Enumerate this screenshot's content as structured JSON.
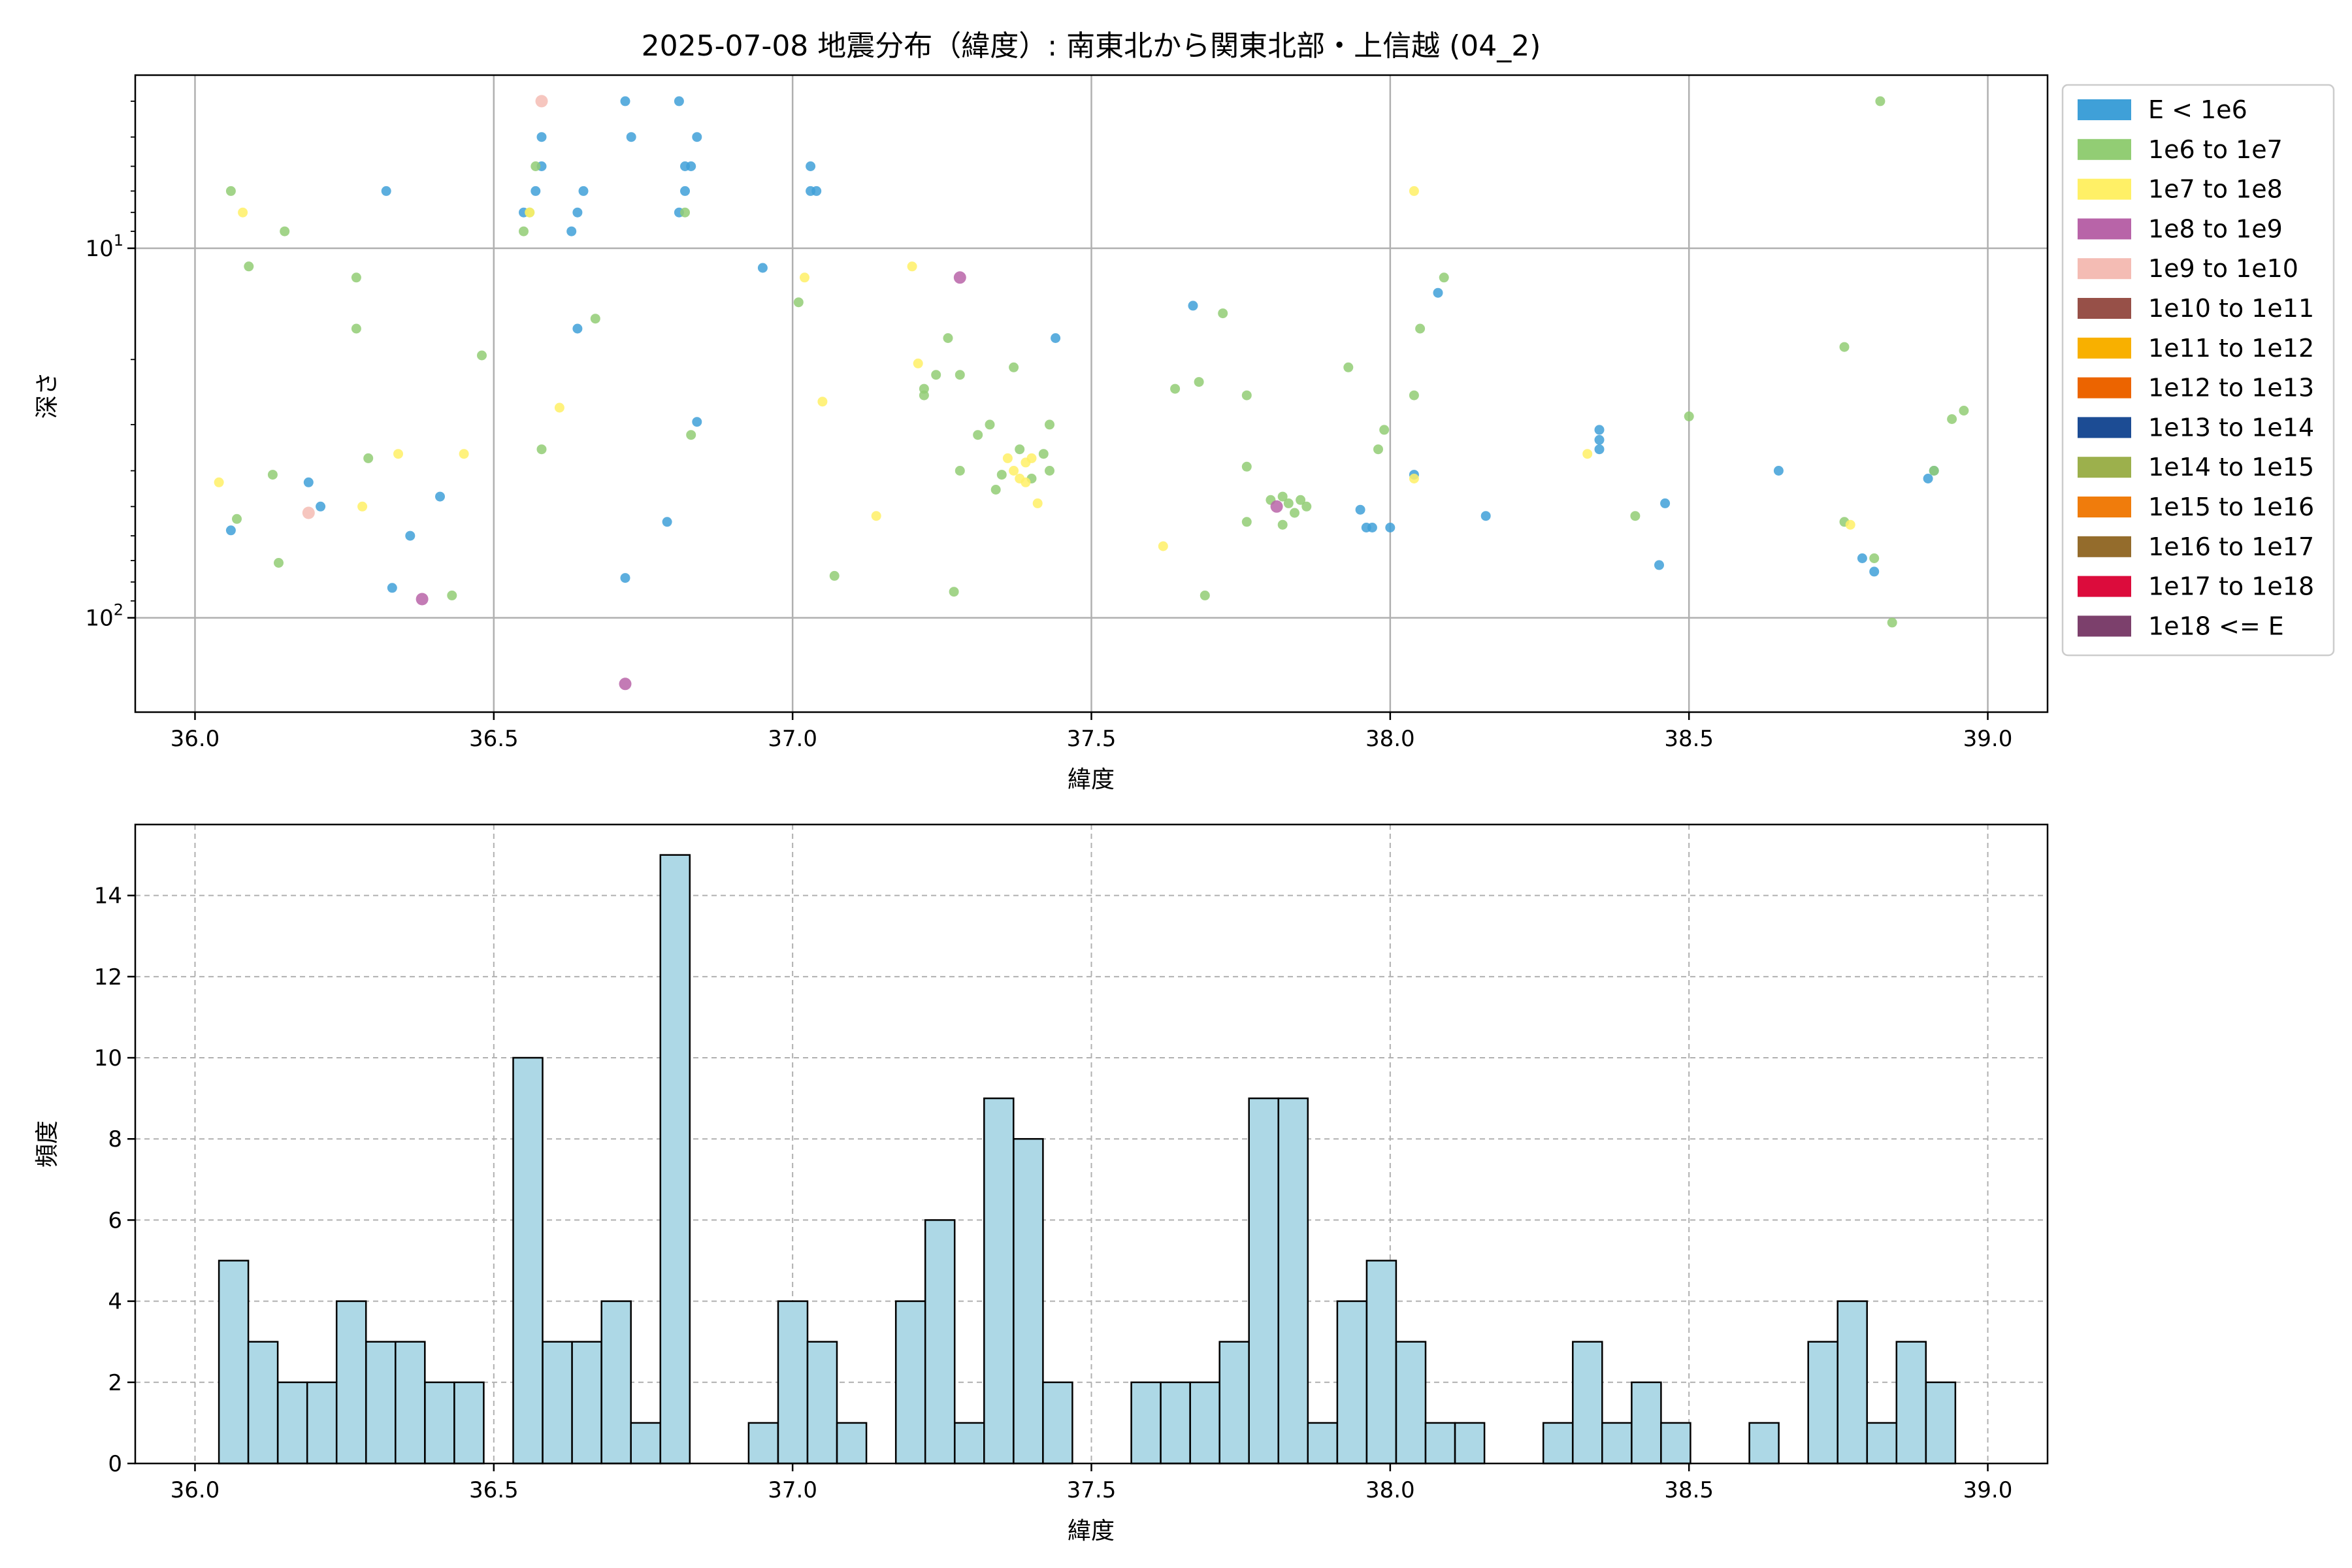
{
  "chart_data": [
    {
      "type": "scatter",
      "title": "2025-07-08 地震分布（緯度）: 南東北から関東北部・上信越 (04_2)",
      "xlabel": "緯度",
      "ylabel": "深さ",
      "xlim": [
        35.9,
        39.1
      ],
      "ylim": [
        180,
        3.4
      ],
      "yscale": "log",
      "y_inverted": true,
      "grid": true,
      "x_ticks": [
        "36.0",
        "36.5",
        "37.0",
        "37.5",
        "38.0",
        "38.5",
        "39.0"
      ],
      "y_ticks": [
        {
          "value": 10,
          "base": "10",
          "exp": "1"
        },
        {
          "value": 100,
          "base": "10",
          "exp": "2"
        }
      ],
      "legend_position": "outside-right",
      "legend": [
        {
          "label": "E < 1e6",
          "color": "#3fa0d8"
        },
        {
          "label": "1e6 to 1e7",
          "color": "#92cd74"
        },
        {
          "label": "1e7 to 1e8",
          "color": "#fff066"
        },
        {
          "label": "1e8 to 1e9",
          "color": "#b864a8"
        },
        {
          "label": "1e9 to 1e10",
          "color": "#f4bcb4"
        },
        {
          "label": "1e10 to 1e11",
          "color": "#975048"
        },
        {
          "label": "1e11 to 1e12",
          "color": "#f8b000"
        },
        {
          "label": "1e12 to 1e13",
          "color": "#ec6400"
        },
        {
          "label": "1e13 to 1e14",
          "color": "#1c4c94"
        },
        {
          "label": "1e14 to 1e15",
          "color": "#9cb04c"
        },
        {
          "label": "1e15 to 1e16",
          "color": "#f07c0c"
        },
        {
          "label": "1e16 to 1e17",
          "color": "#946c2c"
        },
        {
          "label": "1e17 to 1e18",
          "color": "#dc0c3c"
        },
        {
          "label": "1e18 <= E",
          "color": "#7c406c"
        }
      ],
      "points": [
        {
          "x": 36.06,
          "y": 58,
          "c": 0
        },
        {
          "x": 36.19,
          "y": 43,
          "c": 0
        },
        {
          "x": 36.21,
          "y": 50,
          "c": 0
        },
        {
          "x": 36.32,
          "y": 7,
          "c": 0
        },
        {
          "x": 36.33,
          "y": 83,
          "c": 0
        },
        {
          "x": 36.36,
          "y": 60,
          "c": 0
        },
        {
          "x": 36.41,
          "y": 47,
          "c": 0
        },
        {
          "x": 36.55,
          "y": 8,
          "c": 0
        },
        {
          "x": 36.57,
          "y": 7,
          "c": 0
        },
        {
          "x": 36.58,
          "y": 6,
          "c": 0
        },
        {
          "x": 36.58,
          "y": 5,
          "c": 0
        },
        {
          "x": 36.63,
          "y": 9,
          "c": 0
        },
        {
          "x": 36.64,
          "y": 8,
          "c": 0
        },
        {
          "x": 36.64,
          "y": 16.5,
          "c": 0
        },
        {
          "x": 36.65,
          "y": 7,
          "c": 0
        },
        {
          "x": 36.72,
          "y": 4,
          "c": 0
        },
        {
          "x": 36.73,
          "y": 5,
          "c": 0
        },
        {
          "x": 36.72,
          "y": 78,
          "c": 0
        },
        {
          "x": 36.79,
          "y": 55,
          "c": 0
        },
        {
          "x": 36.81,
          "y": 4,
          "c": 0
        },
        {
          "x": 36.81,
          "y": 8,
          "c": 0
        },
        {
          "x": 36.82,
          "y": 6,
          "c": 0
        },
        {
          "x": 36.83,
          "y": 6,
          "c": 0
        },
        {
          "x": 36.82,
          "y": 7,
          "c": 0
        },
        {
          "x": 36.84,
          "y": 5,
          "c": 0
        },
        {
          "x": 36.84,
          "y": 29.5,
          "c": 0
        },
        {
          "x": 36.95,
          "y": 11.3,
          "c": 0
        },
        {
          "x": 37.03,
          "y": 6,
          "c": 0
        },
        {
          "x": 37.03,
          "y": 7,
          "c": 0
        },
        {
          "x": 37.04,
          "y": 7,
          "c": 0
        },
        {
          "x": 37.44,
          "y": 17.5,
          "c": 0
        },
        {
          "x": 37.67,
          "y": 14.3,
          "c": 0
        },
        {
          "x": 37.95,
          "y": 51,
          "c": 0
        },
        {
          "x": 37.96,
          "y": 57,
          "c": 0
        },
        {
          "x": 37.97,
          "y": 57,
          "c": 0
        },
        {
          "x": 38.0,
          "y": 57,
          "c": 0
        },
        {
          "x": 38.04,
          "y": 41,
          "c": 0
        },
        {
          "x": 38.08,
          "y": 13.2,
          "c": 0
        },
        {
          "x": 38.16,
          "y": 53,
          "c": 0
        },
        {
          "x": 38.35,
          "y": 31,
          "c": 0
        },
        {
          "x": 38.35,
          "y": 33,
          "c": 0
        },
        {
          "x": 38.35,
          "y": 35,
          "c": 0
        },
        {
          "x": 38.45,
          "y": 72,
          "c": 0
        },
        {
          "x": 38.46,
          "y": 49,
          "c": 0
        },
        {
          "x": 38.65,
          "y": 40,
          "c": 0
        },
        {
          "x": 38.79,
          "y": 69,
          "c": 0
        },
        {
          "x": 38.81,
          "y": 75,
          "c": 0
        },
        {
          "x": 38.9,
          "y": 42,
          "c": 0
        },
        {
          "x": 38.91,
          "y": 40,
          "c": 0
        },
        {
          "x": 36.06,
          "y": 7,
          "c": 1
        },
        {
          "x": 36.07,
          "y": 54,
          "c": 1
        },
        {
          "x": 36.09,
          "y": 11.2,
          "c": 1
        },
        {
          "x": 36.13,
          "y": 41,
          "c": 1
        },
        {
          "x": 36.14,
          "y": 71,
          "c": 1
        },
        {
          "x": 36.15,
          "y": 9,
          "c": 1
        },
        {
          "x": 36.27,
          "y": 12,
          "c": 1
        },
        {
          "x": 36.27,
          "y": 16.5,
          "c": 1
        },
        {
          "x": 36.29,
          "y": 37,
          "c": 1
        },
        {
          "x": 36.43,
          "y": 87,
          "c": 1
        },
        {
          "x": 36.48,
          "y": 19.5,
          "c": 1
        },
        {
          "x": 36.55,
          "y": 9,
          "c": 1
        },
        {
          "x": 36.56,
          "y": 8,
          "c": 1
        },
        {
          "x": 36.57,
          "y": 6,
          "c": 1
        },
        {
          "x": 36.58,
          "y": 35,
          "c": 1
        },
        {
          "x": 36.67,
          "y": 15.5,
          "c": 1
        },
        {
          "x": 36.82,
          "y": 8,
          "c": 1
        },
        {
          "x": 36.83,
          "y": 32,
          "c": 1
        },
        {
          "x": 37.01,
          "y": 14,
          "c": 1
        },
        {
          "x": 37.07,
          "y": 77,
          "c": 1
        },
        {
          "x": 37.22,
          "y": 24,
          "c": 1
        },
        {
          "x": 37.22,
          "y": 25,
          "c": 1
        },
        {
          "x": 37.24,
          "y": 22,
          "c": 1
        },
        {
          "x": 37.26,
          "y": 17.5,
          "c": 1
        },
        {
          "x": 37.27,
          "y": 85,
          "c": 1
        },
        {
          "x": 37.28,
          "y": 22,
          "c": 1
        },
        {
          "x": 37.28,
          "y": 40,
          "c": 1
        },
        {
          "x": 37.31,
          "y": 32,
          "c": 1
        },
        {
          "x": 37.33,
          "y": 30,
          "c": 1
        },
        {
          "x": 37.34,
          "y": 45,
          "c": 1
        },
        {
          "x": 37.35,
          "y": 41,
          "c": 1
        },
        {
          "x": 37.37,
          "y": 21,
          "c": 1
        },
        {
          "x": 37.38,
          "y": 35,
          "c": 1
        },
        {
          "x": 37.4,
          "y": 42,
          "c": 1
        },
        {
          "x": 37.42,
          "y": 36,
          "c": 1
        },
        {
          "x": 37.43,
          "y": 30,
          "c": 1
        },
        {
          "x": 37.43,
          "y": 40,
          "c": 1
        },
        {
          "x": 37.64,
          "y": 24,
          "c": 1
        },
        {
          "x": 37.68,
          "y": 23,
          "c": 1
        },
        {
          "x": 37.69,
          "y": 87,
          "c": 1
        },
        {
          "x": 37.72,
          "y": 15,
          "c": 1
        },
        {
          "x": 37.76,
          "y": 39,
          "c": 1
        },
        {
          "x": 37.76,
          "y": 55,
          "c": 1
        },
        {
          "x": 37.76,
          "y": 25,
          "c": 1
        },
        {
          "x": 37.8,
          "y": 48,
          "c": 1
        },
        {
          "x": 37.82,
          "y": 47,
          "c": 1
        },
        {
          "x": 37.82,
          "y": 56,
          "c": 1
        },
        {
          "x": 37.83,
          "y": 49,
          "c": 1
        },
        {
          "x": 37.84,
          "y": 52,
          "c": 1
        },
        {
          "x": 37.85,
          "y": 48,
          "c": 1
        },
        {
          "x": 37.86,
          "y": 50,
          "c": 1
        },
        {
          "x": 37.93,
          "y": 21,
          "c": 1
        },
        {
          "x": 37.98,
          "y": 35,
          "c": 1
        },
        {
          "x": 37.99,
          "y": 31,
          "c": 1
        },
        {
          "x": 38.04,
          "y": 25,
          "c": 1
        },
        {
          "x": 38.05,
          "y": 16.5,
          "c": 1
        },
        {
          "x": 38.09,
          "y": 12,
          "c": 1
        },
        {
          "x": 38.41,
          "y": 53,
          "c": 1
        },
        {
          "x": 38.5,
          "y": 28.5,
          "c": 1
        },
        {
          "x": 38.76,
          "y": 18.5,
          "c": 1
        },
        {
          "x": 38.76,
          "y": 55,
          "c": 1
        },
        {
          "x": 38.81,
          "y": 69,
          "c": 1
        },
        {
          "x": 38.82,
          "y": 4,
          "c": 1
        },
        {
          "x": 38.84,
          "y": 103,
          "c": 1
        },
        {
          "x": 38.91,
          "y": 40,
          "c": 1
        },
        {
          "x": 38.94,
          "y": 29,
          "c": 1
        },
        {
          "x": 38.96,
          "y": 27.5,
          "c": 1
        },
        {
          "x": 36.04,
          "y": 43,
          "c": 2
        },
        {
          "x": 36.08,
          "y": 8,
          "c": 2
        },
        {
          "x": 36.28,
          "y": 50,
          "c": 2
        },
        {
          "x": 36.34,
          "y": 36,
          "c": 2
        },
        {
          "x": 36.45,
          "y": 36,
          "c": 2
        },
        {
          "x": 36.56,
          "y": 8,
          "c": 2
        },
        {
          "x": 36.61,
          "y": 27,
          "c": 2
        },
        {
          "x": 37.02,
          "y": 12,
          "c": 2
        },
        {
          "x": 37.05,
          "y": 26,
          "c": 2
        },
        {
          "x": 37.14,
          "y": 53,
          "c": 2
        },
        {
          "x": 37.2,
          "y": 11.2,
          "c": 2
        },
        {
          "x": 37.21,
          "y": 20.5,
          "c": 2
        },
        {
          "x": 37.36,
          "y": 37,
          "c": 2
        },
        {
          "x": 37.37,
          "y": 40,
          "c": 2
        },
        {
          "x": 37.38,
          "y": 42,
          "c": 2
        },
        {
          "x": 37.39,
          "y": 38,
          "c": 2
        },
        {
          "x": 37.39,
          "y": 43,
          "c": 2
        },
        {
          "x": 37.41,
          "y": 49,
          "c": 2
        },
        {
          "x": 37.4,
          "y": 37,
          "c": 2
        },
        {
          "x": 37.62,
          "y": 64,
          "c": 2
        },
        {
          "x": 38.04,
          "y": 7,
          "c": 2
        },
        {
          "x": 38.04,
          "y": 42,
          "c": 2
        },
        {
          "x": 38.33,
          "y": 36,
          "c": 2
        },
        {
          "x": 38.77,
          "y": 56,
          "c": 2
        },
        {
          "x": 36.38,
          "y": 89,
          "c": 3
        },
        {
          "x": 36.72,
          "y": 151,
          "c": 3
        },
        {
          "x": 37.28,
          "y": 12,
          "c": 3
        },
        {
          "x": 37.81,
          "y": 50,
          "c": 3
        },
        {
          "x": 36.19,
          "y": 52,
          "c": 4
        },
        {
          "x": 36.58,
          "y": 4,
          "c": 4
        }
      ]
    },
    {
      "type": "bar",
      "title": "",
      "xlabel": "緯度",
      "ylabel": "頻度",
      "xlim": [
        35.9,
        39.1
      ],
      "ylim": [
        0,
        15.75
      ],
      "grid": true,
      "bar_color": "#add8e6",
      "x_ticks": [
        "36.0",
        "36.5",
        "37.0",
        "37.5",
        "38.0",
        "38.5",
        "39.0"
      ],
      "y_ticks": [
        "0",
        "2",
        "4",
        "6",
        "8",
        "10",
        "12",
        "14"
      ],
      "bin_start": 36.04,
      "bin_width": 0.04925,
      "values": [
        5,
        3,
        2,
        2,
        4,
        3,
        3,
        2,
        2,
        0,
        10,
        3,
        3,
        4,
        1,
        15,
        0,
        0,
        1,
        4,
        3,
        1,
        0,
        4,
        6,
        1,
        9,
        8,
        2,
        0,
        0,
        2,
        2,
        2,
        3,
        9,
        9,
        1,
        4,
        5,
        3,
        1,
        1,
        0,
        0,
        1,
        3,
        1,
        2,
        1,
        0,
        0,
        1,
        0,
        3,
        4,
        1,
        3,
        2
      ]
    }
  ]
}
